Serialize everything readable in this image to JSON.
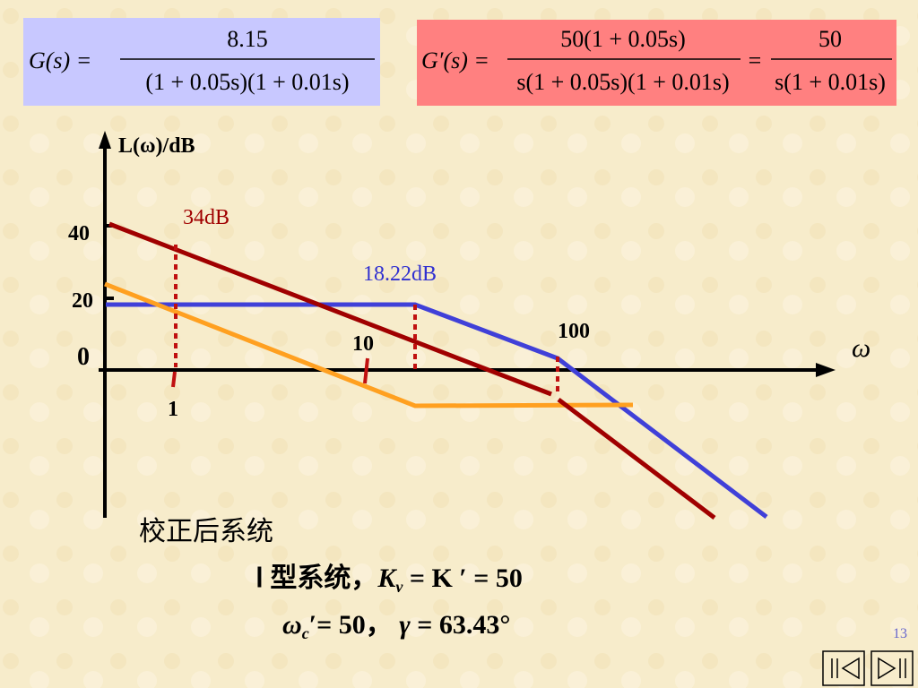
{
  "formula_left": {
    "lhs": "G(s) =",
    "numerator": "8.15",
    "denominator": "(1 + 0.05s)(1 + 0.01s)"
  },
  "formula_right": {
    "lhs": "G′(s) =",
    "numerator_1": "50(1 + 0.05s)",
    "denominator_1": "s(1 + 0.05s)(1 + 0.01s)",
    "equals": "=",
    "numerator_2": "50",
    "denominator_2": "s(1 + 0.01s)"
  },
  "plot": {
    "y_axis_label": "L(ω)/dB",
    "x_axis_label": "ω",
    "y_labels": [
      "40",
      "20",
      "0"
    ],
    "x_labels": [
      "1",
      "10",
      "100"
    ],
    "annotations": [
      "34dB",
      "18.22dB"
    ]
  },
  "result": {
    "title": "校正后系统",
    "line1": [
      "Ⅰ 型系统，",
      "K",
      "v",
      " = K ′ = 50"
    ],
    "line2": [
      "ω",
      "c",
      "′= 50，  ",
      "γ",
      " = 63.43°"
    ]
  },
  "page_number": "13"
}
